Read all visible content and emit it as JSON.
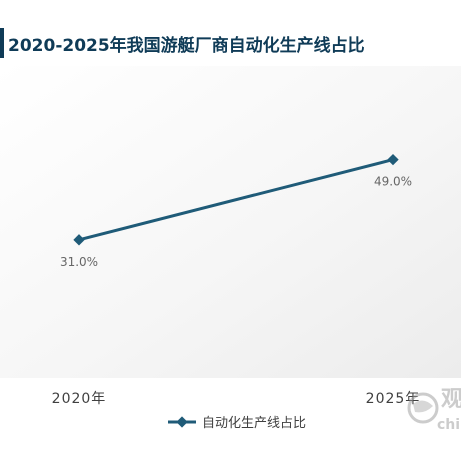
{
  "chart_data": {
    "type": "line",
    "title": "2020-2025年我国游艇厂商自动化生产线占比",
    "categories": [
      "2020年",
      "2025年"
    ],
    "series": [
      {
        "name": "自动化生产线占比",
        "values": [
          31.0,
          49.0
        ],
        "data_labels": [
          "31.0%",
          "49.0%"
        ]
      }
    ],
    "xlabel": "",
    "ylabel": "",
    "ylim": [
      0,
      70
    ],
    "grid": false,
    "legend_position": "bottom",
    "colors": {
      "line": "#1f5b78",
      "plot_background": "#f2f2f2",
      "title_bar": "#0f3b57",
      "label_text": "#666666",
      "axis_text": "#404040"
    }
  },
  "watermark": {
    "text": "观",
    "subtext": "chin"
  }
}
